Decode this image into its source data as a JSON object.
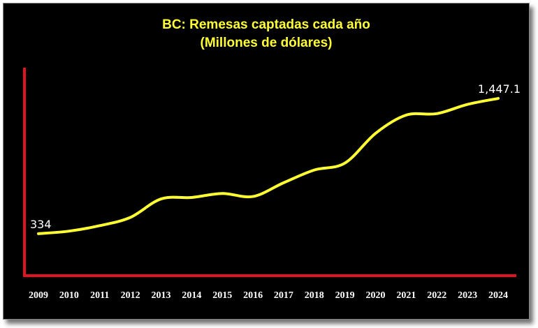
{
  "colors": {
    "background": "#000000",
    "line": "#ffff33",
    "axis": "#e0141c",
    "title": "#ffff33",
    "text": "#ffffff"
  },
  "chart_data": {
    "type": "line",
    "title": "BC: Remesas captadas cada año",
    "subtitle": "(Millones de dólares)",
    "xlabel": "",
    "ylabel": "",
    "x": [
      "2009",
      "2010",
      "2011",
      "2012",
      "2013",
      "2014",
      "2015",
      "2016",
      "2017",
      "2018",
      "2019",
      "2020",
      "2021",
      "2022",
      "2023",
      "2024"
    ],
    "series": [
      {
        "values": [
          334,
          355,
          400,
          468,
          620,
          632,
          665,
          640,
          753,
          858,
          915,
          1160,
          1310,
          1322,
          1398,
          1447.1
        ]
      }
    ],
    "data_labels": [
      {
        "x": "2009",
        "text": "334"
      },
      {
        "x": "2024",
        "text": "1,447.1"
      }
    ],
    "ylim": [
      0,
      1700
    ],
    "grid": false,
    "legend": "none",
    "smooth": true
  }
}
